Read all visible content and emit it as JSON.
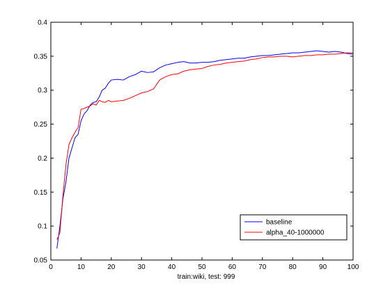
{
  "chart_data": {
    "type": "line",
    "title": "",
    "xlabel": "train:wiki, test: 999",
    "ylabel": "",
    "xlim": [
      0,
      100
    ],
    "ylim": [
      0.05,
      0.4
    ],
    "xticks": [
      0,
      10,
      20,
      30,
      40,
      50,
      60,
      70,
      80,
      90,
      100
    ],
    "xtick_labels": [
      "0",
      "10",
      "20",
      "30",
      "40",
      "50",
      "60",
      "70",
      "80",
      "90",
      "100"
    ],
    "yticks": [
      0.05,
      0.1,
      0.15,
      0.2,
      0.25,
      0.3,
      0.35,
      0.4
    ],
    "ytick_labels": [
      "0.05",
      "0.1",
      "0.15",
      "0.2",
      "0.25",
      "0.3",
      "0.35",
      "0.4"
    ],
    "grid": false,
    "legend_position": "bottom-right",
    "series": [
      {
        "name": "baseline",
        "color": "#0000ff",
        "x": [
          2,
          3,
          4,
          5,
          6,
          7,
          8,
          9,
          10,
          11,
          12,
          13,
          14,
          15,
          16,
          17,
          18,
          19,
          20,
          22,
          24,
          26,
          28,
          30,
          32,
          34,
          36,
          38,
          40,
          42,
          44,
          46,
          48,
          50,
          52,
          54,
          56,
          58,
          60,
          62,
          64,
          66,
          68,
          70,
          72,
          74,
          76,
          78,
          80,
          82,
          84,
          86,
          88,
          90,
          92,
          94,
          96,
          98,
          100
        ],
        "y": [
          0.067,
          0.1,
          0.14,
          0.165,
          0.2,
          0.215,
          0.23,
          0.235,
          0.255,
          0.265,
          0.27,
          0.278,
          0.282,
          0.283,
          0.29,
          0.3,
          0.303,
          0.31,
          0.315,
          0.316,
          0.315,
          0.32,
          0.323,
          0.328,
          0.326,
          0.327,
          0.333,
          0.337,
          0.339,
          0.341,
          0.342,
          0.34,
          0.34,
          0.341,
          0.341,
          0.342,
          0.344,
          0.345,
          0.346,
          0.347,
          0.347,
          0.349,
          0.35,
          0.351,
          0.351,
          0.352,
          0.353,
          0.354,
          0.355,
          0.355,
          0.356,
          0.357,
          0.358,
          0.357,
          0.356,
          0.357,
          0.356,
          0.354,
          0.353
        ]
      },
      {
        "name": "alpha_40-1000000",
        "color": "#ff0000",
        "x": [
          2,
          3,
          4,
          5,
          6,
          7,
          8,
          9,
          10,
          11,
          12,
          13,
          14,
          15,
          16,
          17,
          18,
          19,
          20,
          22,
          24,
          26,
          28,
          30,
          32,
          34,
          36,
          38,
          40,
          42,
          44,
          46,
          48,
          50,
          52,
          54,
          56,
          58,
          60,
          62,
          64,
          66,
          68,
          70,
          72,
          74,
          76,
          78,
          80,
          82,
          84,
          86,
          88,
          90,
          92,
          94,
          96,
          98,
          100
        ],
        "y": [
          0.08,
          0.09,
          0.145,
          0.19,
          0.22,
          0.23,
          0.238,
          0.245,
          0.272,
          0.273,
          0.275,
          0.277,
          0.28,
          0.278,
          0.285,
          0.283,
          0.282,
          0.285,
          0.283,
          0.284,
          0.285,
          0.288,
          0.292,
          0.296,
          0.298,
          0.302,
          0.315,
          0.32,
          0.323,
          0.324,
          0.328,
          0.33,
          0.331,
          0.332,
          0.335,
          0.337,
          0.338,
          0.34,
          0.341,
          0.342,
          0.343,
          0.345,
          0.346,
          0.348,
          0.349,
          0.349,
          0.35,
          0.35,
          0.349,
          0.35,
          0.351,
          0.351,
          0.352,
          0.352,
          0.353,
          0.353,
          0.354,
          0.355,
          0.355
        ]
      }
    ]
  }
}
